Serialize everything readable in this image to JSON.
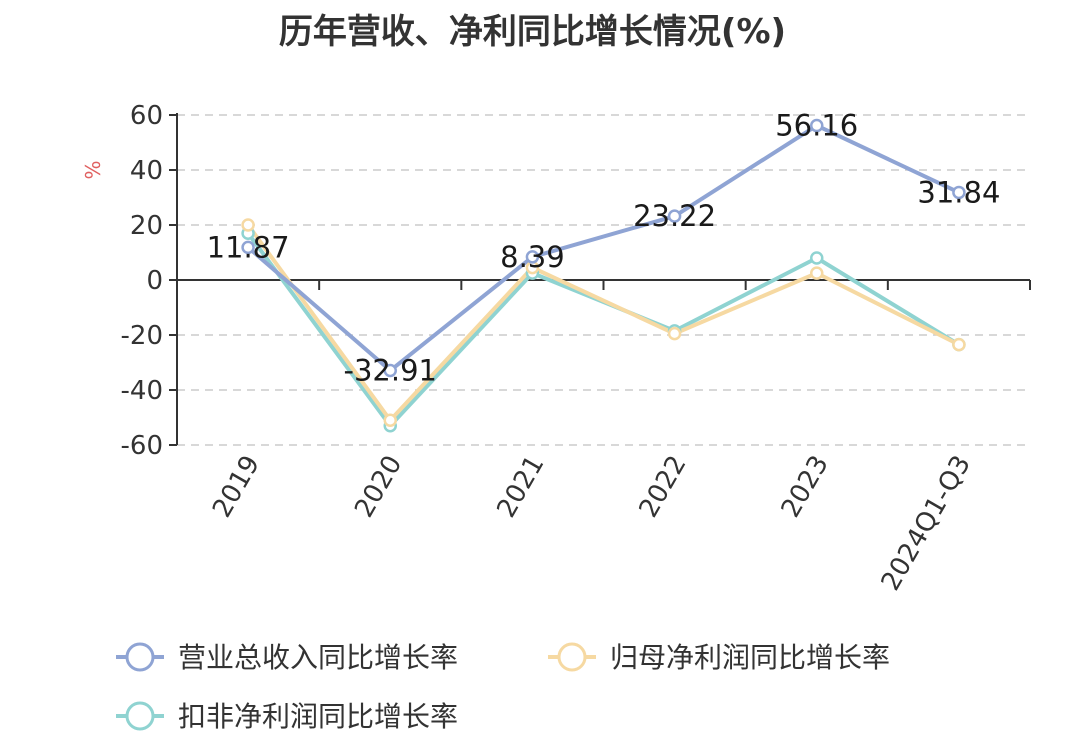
{
  "chart_data": {
    "type": "line",
    "title": "历年营收、净利同比增长情况(%)",
    "ylabel": "%",
    "xlabel": "",
    "categories": [
      "2019",
      "2020",
      "2021",
      "2022",
      "2023",
      "2024Q1-Q3"
    ],
    "ylim": [
      -60,
      60
    ],
    "yticks": [
      60,
      40,
      20,
      0,
      -20,
      -40,
      -60
    ],
    "grid": true,
    "legend_position": "bottom",
    "series": [
      {
        "name": "营业总收入同比增长率",
        "color": "#8fa4d4",
        "values": [
          11.87,
          -32.91,
          8.39,
          23.22,
          56.16,
          31.84
        ],
        "labels": [
          "11.87",
          "-32.91",
          "8.39",
          "23.22",
          "56.16",
          "31.84"
        ]
      },
      {
        "name": "归母净利润同比增长率",
        "color": "#f6d9a2",
        "values": [
          20.0,
          -51.0,
          4.5,
          -19.5,
          2.5,
          -23.5
        ]
      },
      {
        "name": "扣非净利润同比增长率",
        "color": "#8fd3d1",
        "values": [
          17.0,
          -53.0,
          2.5,
          -18.5,
          8.0,
          -23.5
        ]
      }
    ]
  }
}
